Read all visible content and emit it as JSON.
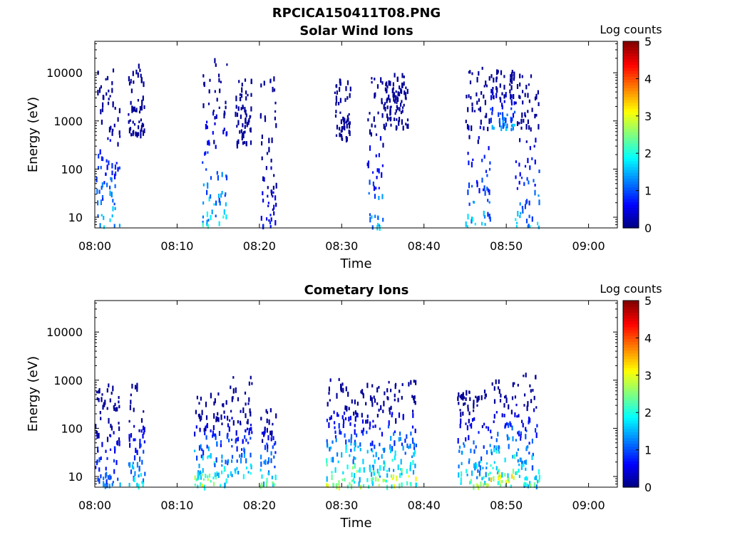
{
  "figure_title": "RPCICA150411T08.PNG",
  "colorbar": {
    "label": "Log counts",
    "ticks": [
      "0",
      "1",
      "2",
      "3",
      "4",
      "5"
    ],
    "colormap": "jet",
    "range": [
      0,
      5
    ]
  },
  "chart_data": [
    {
      "type": "heatmap",
      "title": "Solar Wind Ions",
      "xlabel": "Time",
      "ylabel": "Energy (eV)",
      "x_ticks": [
        "08:00",
        "08:10",
        "08:20",
        "08:30",
        "08:40",
        "08:50",
        "09:00"
      ],
      "x_range_minutes_after_0800": [
        0,
        63.5
      ],
      "y_scale": "log",
      "y_ticks": [
        "10",
        "100",
        "1000",
        "10000"
      ],
      "y_range": [
        6,
        45000
      ],
      "c_range": [
        0,
        5
      ],
      "bursts": [
        {
          "t_start": "08:00",
          "t_end": "08:03",
          "energy_min": 6,
          "energy_max": 12000,
          "max_log_counts": 2
        },
        {
          "t_start": "08:04",
          "t_end": "08:06",
          "energy_min": 500,
          "energy_max": 15000,
          "max_log_counts": 0.3
        },
        {
          "t_start": "08:13",
          "t_end": "08:16",
          "energy_min": 6,
          "energy_max": 20000,
          "max_log_counts": 2.2
        },
        {
          "t_start": "08:17",
          "t_end": "08:19",
          "energy_min": 300,
          "energy_max": 8000,
          "max_log_counts": 0.3
        },
        {
          "t_start": "08:20",
          "t_end": "08:22",
          "energy_min": 6,
          "energy_max": 9000,
          "max_log_counts": 0.8
        },
        {
          "t_start": "08:29",
          "t_end": "08:31",
          "energy_min": 400,
          "energy_max": 10000,
          "max_log_counts": 0.3
        },
        {
          "t_start": "08:33",
          "t_end": "08:35",
          "energy_min": 6,
          "energy_max": 10000,
          "max_log_counts": 1.8
        },
        {
          "t_start": "08:35",
          "t_end": "08:38",
          "energy_min": 700,
          "energy_max": 9000,
          "max_log_counts": 0.3
        },
        {
          "t_start": "08:45",
          "t_end": "08:48",
          "energy_min": 6,
          "energy_max": 12000,
          "max_log_counts": 1.8
        },
        {
          "t_start": "08:48",
          "t_end": "08:51",
          "energy_min": 600,
          "energy_max": 12000,
          "max_log_counts": 1.8
        },
        {
          "t_start": "08:51",
          "t_end": "08:54",
          "energy_min": 6,
          "energy_max": 9000,
          "max_log_counts": 1.8
        }
      ]
    },
    {
      "type": "heatmap",
      "title": "Cometary Ions",
      "xlabel": "Time",
      "ylabel": "Energy (eV)",
      "x_ticks": [
        "08:00",
        "08:10",
        "08:20",
        "08:30",
        "08:40",
        "08:50",
        "09:00"
      ],
      "x_range_minutes_after_0800": [
        0,
        63.5
      ],
      "y_scale": "log",
      "y_ticks": [
        "10",
        "100",
        "1000",
        "10000"
      ],
      "y_range": [
        6,
        45000
      ],
      "c_range": [
        0,
        5
      ],
      "bursts": [
        {
          "t_start": "08:00",
          "t_end": "08:03",
          "energy_min": 6,
          "energy_max": 800,
          "max_log_counts": 1.5
        },
        {
          "t_start": "08:04",
          "t_end": "08:06",
          "energy_min": 6,
          "energy_max": 800,
          "max_log_counts": 2
        },
        {
          "t_start": "08:12",
          "t_end": "08:16",
          "energy_min": 6,
          "energy_max": 500,
          "max_log_counts": 3
        },
        {
          "t_start": "08:16",
          "t_end": "08:19",
          "energy_min": 10,
          "energy_max": 1200,
          "max_log_counts": 2
        },
        {
          "t_start": "08:20",
          "t_end": "08:22",
          "energy_min": 6,
          "energy_max": 300,
          "max_log_counts": 2.5
        },
        {
          "t_start": "08:28",
          "t_end": "08:32",
          "energy_min": 6,
          "energy_max": 1000,
          "max_log_counts": 3.2
        },
        {
          "t_start": "08:32",
          "t_end": "08:35",
          "energy_min": 6,
          "energy_max": 800,
          "max_log_counts": 2.8
        },
        {
          "t_start": "08:35",
          "t_end": "08:39",
          "energy_min": 6,
          "energy_max": 1000,
          "max_log_counts": 3.3
        },
        {
          "t_start": "08:44",
          "t_end": "08:48",
          "energy_min": 6,
          "energy_max": 600,
          "max_log_counts": 2.8
        },
        {
          "t_start": "08:48",
          "t_end": "08:51",
          "energy_min": 6,
          "energy_max": 1000,
          "max_log_counts": 3.6
        },
        {
          "t_start": "08:51",
          "t_end": "08:54",
          "energy_min": 6,
          "energy_max": 1500,
          "max_log_counts": 2.5
        }
      ]
    }
  ]
}
